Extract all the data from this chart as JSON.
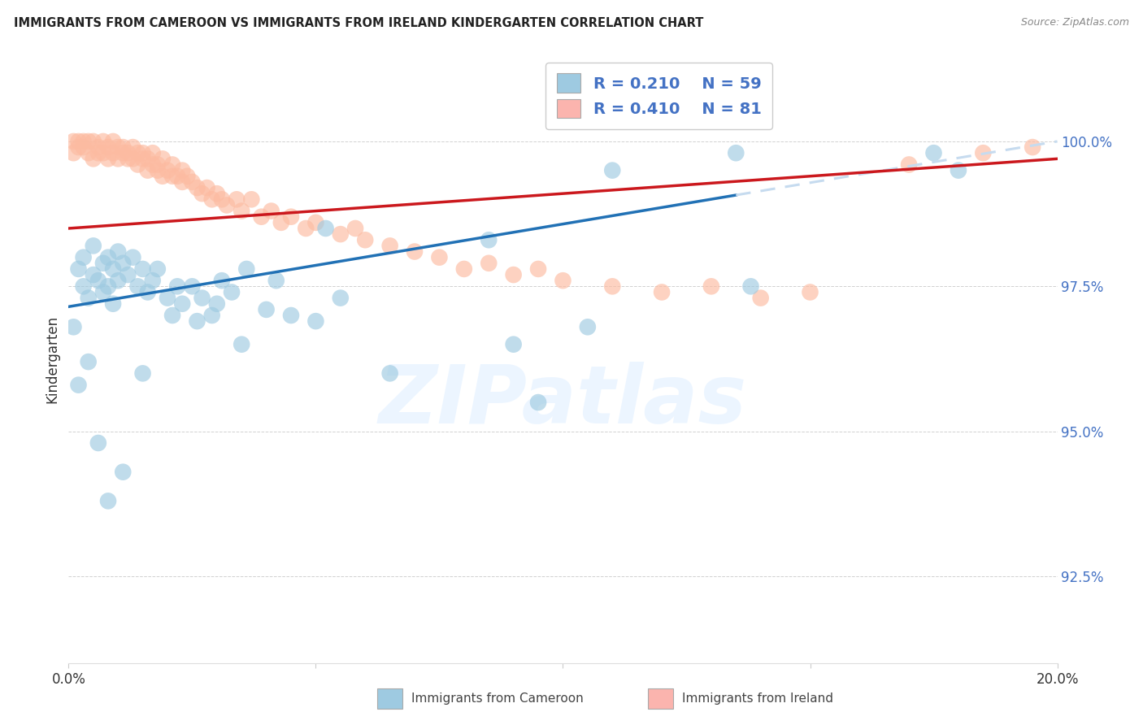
{
  "title": "IMMIGRANTS FROM CAMEROON VS IMMIGRANTS FROM IRELAND KINDERGARTEN CORRELATION CHART",
  "source": "Source: ZipAtlas.com",
  "ylabel": "Kindergarten",
  "yticks": [
    92.5,
    95.0,
    97.5,
    100.0
  ],
  "ytick_labels": [
    "92.5%",
    "95.0%",
    "97.5%",
    "100.0%"
  ],
  "xmin": 0.0,
  "xmax": 20.0,
  "ymin": 91.0,
  "ymax": 101.5,
  "legend_color_blue": "#9ecae1",
  "legend_color_pink": "#fbb4ae",
  "trend_blue_color": "#2171b5",
  "trend_pink_color": "#cb181d",
  "trend_blue_dashed_color": "#c6dbef",
  "dot_blue_color": "#9ecae1",
  "dot_pink_color": "#fcbba1",
  "grid_color": "#cccccc",
  "axis_label_color": "#333333",
  "yaxis_color": "#4472c4",
  "watermark_color": "#ddeeff",
  "bg_color": "#ffffff",
  "cam_x": [
    0.2,
    0.3,
    0.3,
    0.4,
    0.5,
    0.5,
    0.6,
    0.7,
    0.7,
    0.8,
    0.8,
    0.9,
    0.9,
    1.0,
    1.0,
    1.1,
    1.2,
    1.3,
    1.4,
    1.5,
    1.6,
    1.7,
    1.8,
    2.0,
    2.1,
    2.2,
    2.3,
    2.5,
    2.6,
    2.7,
    2.9,
    3.0,
    3.1,
    3.3,
    3.5,
    3.6,
    4.0,
    4.2,
    4.5,
    5.0,
    5.2,
    5.5,
    6.5,
    8.5,
    9.0,
    9.5,
    10.5,
    11.0,
    13.5,
    13.8,
    17.5,
    18.0,
    0.1,
    0.2,
    0.4,
    0.6,
    0.8,
    1.1,
    1.5
  ],
  "cam_y": [
    97.8,
    98.0,
    97.5,
    97.3,
    97.7,
    98.2,
    97.6,
    97.9,
    97.4,
    97.5,
    98.0,
    97.8,
    97.2,
    97.6,
    98.1,
    97.9,
    97.7,
    98.0,
    97.5,
    97.8,
    97.4,
    97.6,
    97.8,
    97.3,
    97.0,
    97.5,
    97.2,
    97.5,
    96.9,
    97.3,
    97.0,
    97.2,
    97.6,
    97.4,
    96.5,
    97.8,
    97.1,
    97.6,
    97.0,
    96.9,
    98.5,
    97.3,
    96.0,
    98.3,
    96.5,
    95.5,
    96.8,
    99.5,
    99.8,
    97.5,
    99.8,
    99.5,
    96.8,
    95.8,
    96.2,
    94.8,
    93.8,
    94.3,
    96.0
  ],
  "ire_x": [
    0.1,
    0.1,
    0.2,
    0.2,
    0.3,
    0.3,
    0.4,
    0.4,
    0.5,
    0.5,
    0.6,
    0.6,
    0.7,
    0.7,
    0.8,
    0.8,
    0.9,
    0.9,
    1.0,
    1.0,
    1.1,
    1.1,
    1.2,
    1.2,
    1.3,
    1.3,
    1.4,
    1.4,
    1.5,
    1.5,
    1.6,
    1.6,
    1.7,
    1.7,
    1.8,
    1.8,
    1.9,
    1.9,
    2.0,
    2.1,
    2.1,
    2.2,
    2.3,
    2.3,
    2.4,
    2.5,
    2.6,
    2.7,
    2.8,
    2.9,
    3.0,
    3.1,
    3.2,
    3.4,
    3.5,
    3.7,
    3.9,
    4.1,
    4.3,
    4.5,
    4.8,
    5.0,
    5.5,
    5.8,
    6.0,
    6.5,
    7.0,
    7.5,
    8.0,
    8.5,
    9.0,
    9.5,
    10.0,
    11.0,
    12.0,
    13.0,
    14.0,
    15.0,
    17.0,
    18.5,
    19.5
  ],
  "ire_y": [
    100.0,
    99.8,
    100.0,
    99.9,
    99.9,
    100.0,
    100.0,
    99.8,
    100.0,
    99.7,
    99.9,
    99.8,
    100.0,
    99.8,
    99.9,
    99.7,
    100.0,
    99.8,
    99.9,
    99.7,
    99.8,
    99.9,
    99.8,
    99.7,
    99.7,
    99.9,
    99.8,
    99.6,
    99.7,
    99.8,
    99.5,
    99.7,
    99.6,
    99.8,
    99.5,
    99.6,
    99.4,
    99.7,
    99.5,
    99.4,
    99.6,
    99.4,
    99.5,
    99.3,
    99.4,
    99.3,
    99.2,
    99.1,
    99.2,
    99.0,
    99.1,
    99.0,
    98.9,
    99.0,
    98.8,
    99.0,
    98.7,
    98.8,
    98.6,
    98.7,
    98.5,
    98.6,
    98.4,
    98.5,
    98.3,
    98.2,
    98.1,
    98.0,
    97.8,
    97.9,
    97.7,
    97.8,
    97.6,
    97.5,
    97.4,
    97.5,
    97.3,
    97.4,
    99.6,
    99.8,
    99.9
  ],
  "cam_trend_x0": 0.0,
  "cam_trend_y0": 97.15,
  "cam_trend_x1": 20.0,
  "cam_trend_y1": 100.0,
  "cam_solid_end": 13.5,
  "ire_trend_x0": 0.0,
  "ire_trend_y0": 98.5,
  "ire_trend_x1": 20.0,
  "ire_trend_y1": 99.7
}
